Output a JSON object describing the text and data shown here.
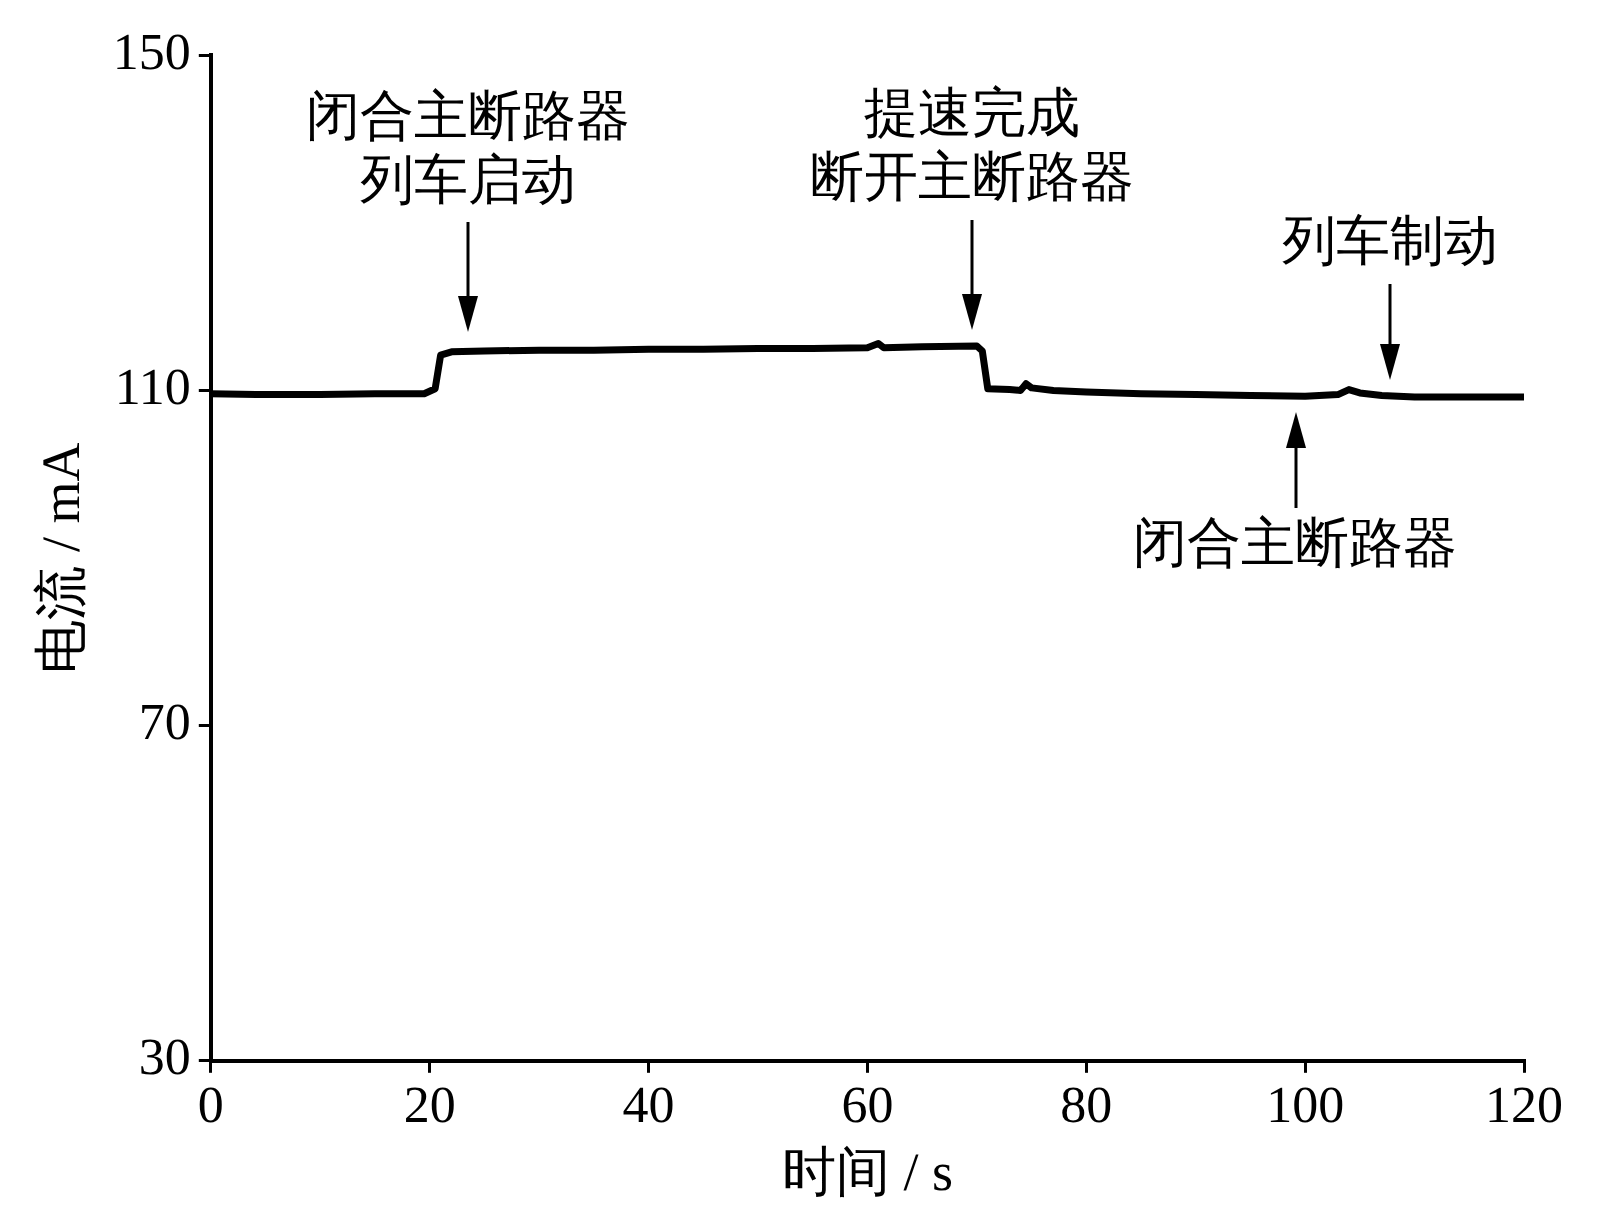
{
  "chart_data": {
    "type": "line",
    "xlabel": "时间 / s",
    "ylabel": "电流 / mA",
    "x": [
      0,
      5,
      10,
      15,
      19.5,
      20.5,
      21,
      22,
      25,
      30,
      35,
      40,
      45,
      50,
      55,
      60,
      61,
      61.5,
      65,
      70,
      70.5,
      71,
      73,
      74,
      74.5,
      75,
      77,
      80,
      85,
      90,
      95,
      100,
      103,
      104,
      105,
      107,
      110,
      115,
      120
    ],
    "values": [
      109.6,
      109.5,
      109.5,
      109.6,
      109.6,
      110.2,
      114.2,
      114.6,
      114.7,
      114.8,
      114.8,
      114.9,
      114.9,
      115,
      115,
      115.1,
      115.6,
      115.1,
      115.2,
      115.3,
      114.7,
      110.2,
      110.1,
      110,
      110.8,
      110.3,
      110,
      109.8,
      109.6,
      109.5,
      109.4,
      109.3,
      109.5,
      110.1,
      109.7,
      109.4,
      109.2,
      109.2,
      109.2
    ],
    "color": "#000000",
    "xlim": [
      0,
      120
    ],
    "xticks": [
      0,
      20,
      40,
      60,
      80,
      100,
      120
    ],
    "ylim": [
      30,
      150
    ],
    "yticks": [
      30,
      70,
      110,
      150
    ],
    "grid": false,
    "legend": false,
    "marker": "none",
    "line_style": "solid",
    "annotations": [
      {
        "text": "闭合主断路器列车启动",
        "x": 23.5,
        "y": 115
      },
      {
        "text": "提速完成断开主断路器",
        "x": 69.6,
        "y": 115.3
      },
      {
        "text": "列车制动",
        "x": 107.8,
        "y": 109.4
      },
      {
        "text": "闭合主断路器",
        "x": 99.1,
        "y": 109.3
      }
    ]
  }
}
